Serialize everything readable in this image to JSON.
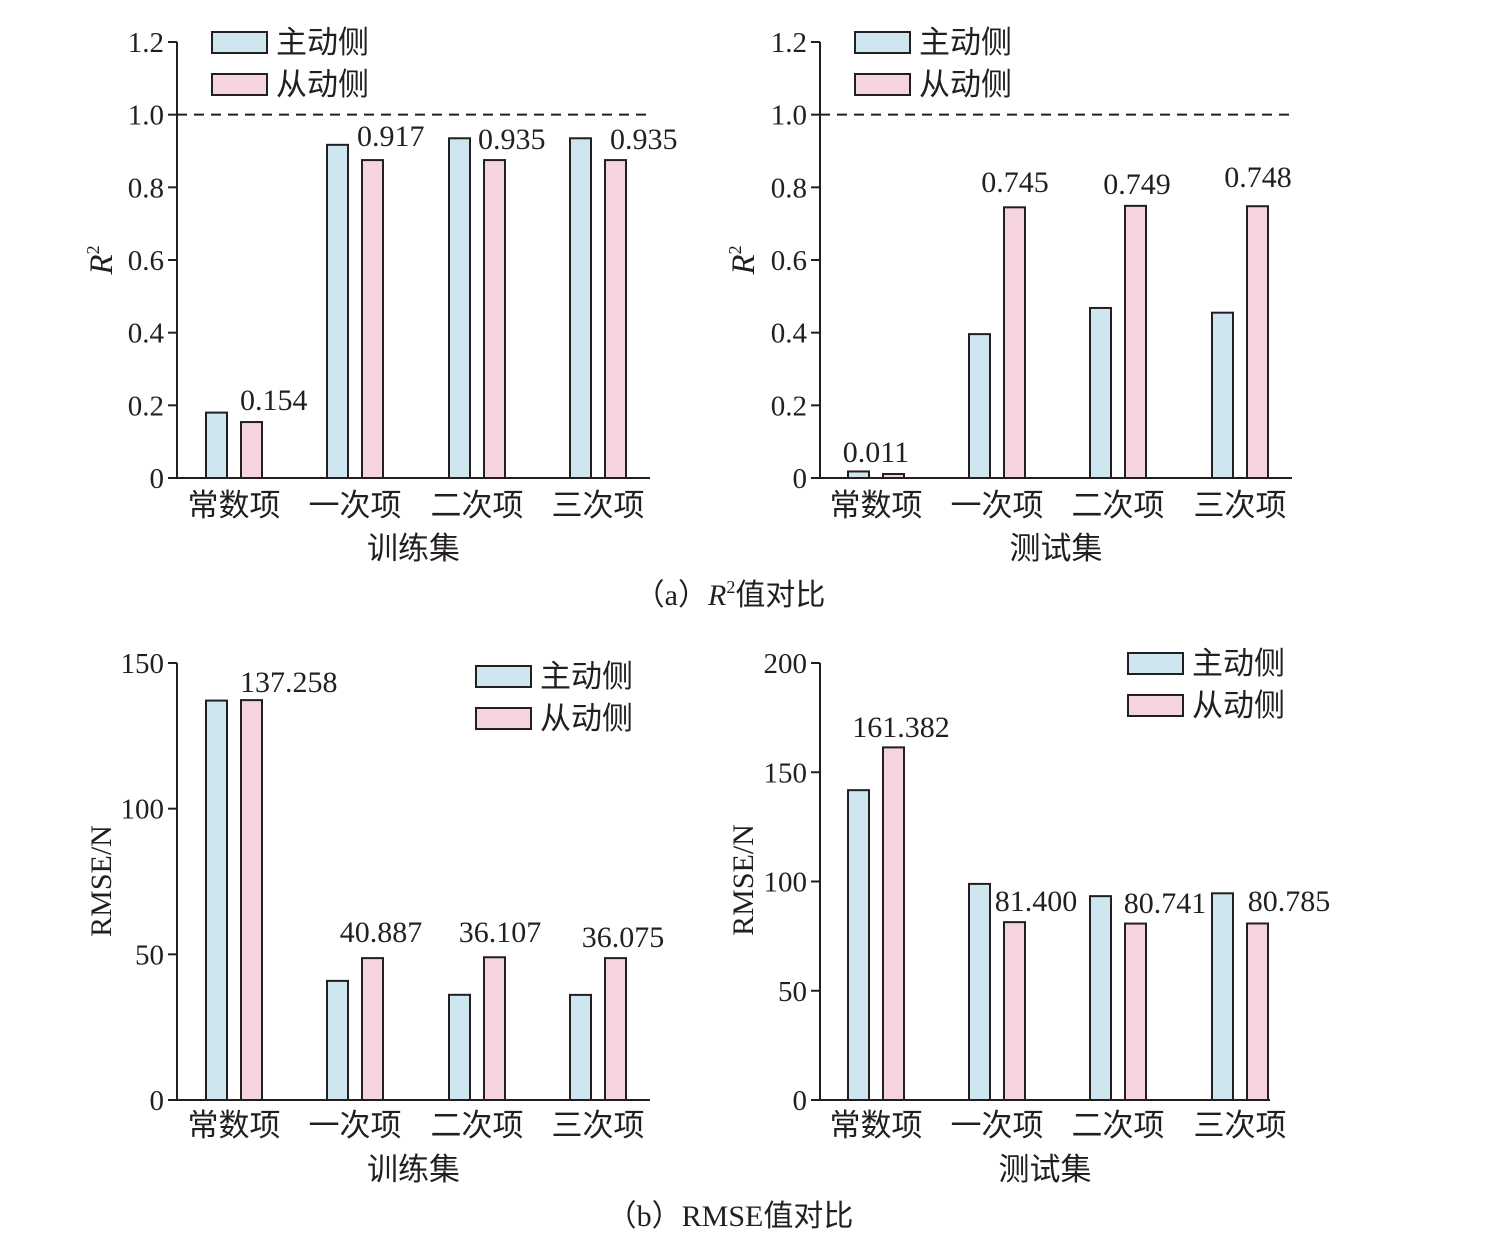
{
  "captions": [
    {
      "prefix": "（a）",
      "symbol": "R",
      "superscript": "2",
      "text": "值对比"
    },
    {
      "prefix": "（b）",
      "text": "RMSE值对比"
    }
  ],
  "chart_data": [
    {
      "type": "bar",
      "categories": [
        "常数项",
        "一次项",
        "二次项",
        "三次项"
      ],
      "series": [
        {
          "name": "主动侧",
          "color": "#cde6ef",
          "values": [
            0.18,
            0.917,
            0.935,
            0.935
          ]
        },
        {
          "name": "从动侧",
          "color": "#f5d3e0",
          "values": [
            0.154,
            0.875,
            0.875,
            0.875
          ]
        }
      ],
      "data_labels": [
        "0.154",
        "0.917",
        "0.935",
        "0.935"
      ],
      "xlabel": "训练集",
      "ylabel": "R",
      "ylabel_superscript": "2",
      "ylim": [
        0,
        1.2
      ],
      "yticks": [
        "0",
        "0.2",
        "0.4",
        "0.6",
        "0.8",
        "1.0",
        "1.2"
      ],
      "reference_line": 1.0,
      "legend": "top-left",
      "grid": false
    },
    {
      "type": "bar",
      "categories": [
        "常数项",
        "一次项",
        "二次项",
        "三次项"
      ],
      "series": [
        {
          "name": "主动侧",
          "color": "#cde6ef",
          "values": [
            0.018,
            0.396,
            0.468,
            0.455
          ]
        },
        {
          "name": "从动侧",
          "color": "#f5d3e0",
          "values": [
            0.011,
            0.745,
            0.749,
            0.748
          ]
        }
      ],
      "data_labels": [
        "0.011",
        "0.745",
        "0.749",
        "0.748"
      ],
      "xlabel": "测试集",
      "ylabel": "R",
      "ylabel_superscript": "2",
      "ylim": [
        0,
        1.2
      ],
      "yticks": [
        "0",
        "0.2",
        "0.4",
        "0.6",
        "0.8",
        "1.0",
        "1.2"
      ],
      "reference_line": 1.0,
      "legend": "top-left",
      "grid": false
    },
    {
      "type": "bar",
      "categories": [
        "常数项",
        "一次项",
        "二次项",
        "三次项"
      ],
      "series": [
        {
          "name": "主动侧",
          "color": "#cde6ef",
          "values": [
            137.1,
            40.887,
            36.107,
            36.075
          ]
        },
        {
          "name": "从动侧",
          "color": "#f5d3e0",
          "values": [
            137.258,
            48.7,
            49.0,
            48.7
          ]
        }
      ],
      "data_labels": [
        "137.258",
        "40.887",
        "36.107",
        "36.075"
      ],
      "xlabel": "训练集",
      "ylabel": "RMSE/N",
      "ylim": [
        0,
        150
      ],
      "yticks": [
        "0",
        "50",
        "100",
        "150"
      ],
      "legend": "top-right",
      "grid": false
    },
    {
      "type": "bar",
      "categories": [
        "常数项",
        "一次项",
        "二次项",
        "三次项"
      ],
      "series": [
        {
          "name": "主动侧",
          "color": "#cde6ef",
          "values": [
            141.8,
            98.9,
            93.3,
            94.6
          ]
        },
        {
          "name": "从动侧",
          "color": "#f5d3e0",
          "values": [
            161.382,
            81.4,
            80.741,
            80.785
          ]
        }
      ],
      "data_labels": [
        "161.382",
        "81.400",
        "80.741",
        "80.785"
      ],
      "xlabel": "测试集",
      "ylabel": "RMSE/N",
      "ylim": [
        0,
        200
      ],
      "yticks": [
        "0",
        "50",
        "100",
        "150",
        "200"
      ],
      "legend": "top-right",
      "grid": false
    }
  ]
}
